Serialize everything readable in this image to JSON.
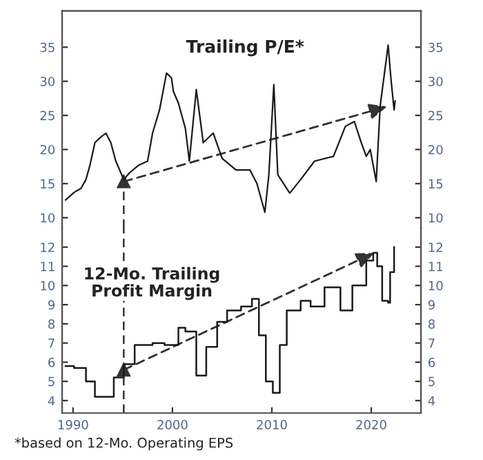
{
  "chart_data": [
    {
      "type": "line",
      "title": "Trailing P/E*",
      "xlim": [
        1988.9,
        2025
      ],
      "xticks": [
        1990,
        2000,
        2010,
        2020
      ],
      "ylim": [
        8.5,
        40.3
      ],
      "yticks": [
        10,
        15,
        20,
        25,
        30,
        35
      ],
      "y2lim": [
        8.5,
        40.3
      ],
      "y2ticks": [
        10,
        15,
        20,
        25,
        30,
        35
      ],
      "tick_labels": "y",
      "grid": false,
      "series": [
        {
          "color": "#1a1a1a",
          "x": [
            1989.25,
            1990.1,
            1990.8,
            1991.3,
            1991.7,
            1992.2,
            1992.7,
            1993.3,
            1993.8,
            1994.3,
            1995.1,
            1995.7,
            1996.6,
            1997.5,
            1998.0,
            1998.7,
            1999.4,
            1999.9,
            2000.1,
            2000.6,
            2001.3,
            2001.7,
            2002.4,
            2003.1,
            2004.1,
            2005.0,
            2006.4,
            2007.8,
            2008.5,
            2009.3,
            2009.7,
            2010.2,
            2010.6,
            2011.8,
            2012.9,
            2014.3,
            2016.2,
            2017.4,
            2018.3,
            2019.0,
            2019.5,
            2019.9,
            2020.5,
            2020.9,
            2021.7,
            2022.0,
            2022.3,
            2022.4
          ],
          "values": [
            12.6,
            13.7,
            14.3,
            15.6,
            17.7,
            21.0,
            21.7,
            22.4,
            21.0,
            18.3,
            15.6,
            16.6,
            17.7,
            18.3,
            22.4,
            25.8,
            31.2,
            30.5,
            28.5,
            26.8,
            23.1,
            18.3,
            28.8,
            21.0,
            22.4,
            18.7,
            17.0,
            17.0,
            15.0,
            10.8,
            16.3,
            29.5,
            16.3,
            13.6,
            15.6,
            18.3,
            19.0,
            23.4,
            24.1,
            21.0,
            19.0,
            20.0,
            15.3,
            26.4,
            35.3,
            30.1,
            25.8,
            27.1
          ]
        },
        {
          "type": "line",
          "color": "#333333",
          "line_style": "dashed",
          "marker": "triangle",
          "x": [
            1995.1,
            2021.6
          ],
          "values": [
            15.3,
            26.3
          ]
        }
      ],
      "ref_lines": [
        {
          "axis": "x",
          "value": 1995.1,
          "line_style": "dashed",
          "color": "#333333"
        }
      ]
    },
    {
      "type": "line",
      "title": "12-Mo. Trailing\nProfit Margin",
      "xlim": [
        1988.9,
        2025
      ],
      "xticks": [
        1990,
        2000,
        2010,
        2020
      ],
      "ylim": [
        3.35,
        13.0
      ],
      "yticks": [
        4,
        5,
        6,
        7,
        8,
        9,
        10,
        11,
        12
      ],
      "y2lim": [
        3.35,
        13.0
      ],
      "y2ticks": [
        4,
        5,
        6,
        7,
        8,
        9,
        10,
        11,
        12
      ],
      "grid": false,
      "annotations": [
        "*based on 12-Mo. Operating EPS"
      ],
      "series": [
        {
          "type": "step",
          "color": "#1a1a1a",
          "x": [
            1989.25,
            1990.1,
            1991.3,
            1992.2,
            1993.4,
            1994.1,
            1995.1,
            1996.2,
            1998.0,
            1999.2,
            2000.6,
            2001.3,
            2002.4,
            2003.4,
            2004.5,
            2005.5,
            2006.9,
            2008.0,
            2008.7,
            2009.4,
            2010.1,
            2010.8,
            2011.5,
            2012.9,
            2013.9,
            2015.3,
            2016.9,
            2018.1,
            2019.5,
            2020.2,
            2020.6,
            2021.1,
            2021.7,
            2021.9,
            2022.3
          ],
          "values": [
            5.8,
            5.7,
            5.0,
            4.2,
            4.2,
            5.2,
            5.9,
            6.9,
            7.0,
            6.9,
            7.8,
            7.6,
            5.3,
            6.8,
            8.1,
            8.7,
            8.9,
            9.3,
            7.4,
            5.0,
            4.4,
            6.9,
            8.7,
            9.2,
            8.9,
            9.9,
            8.7,
            10.0,
            11.3,
            11.7,
            11.0,
            9.2,
            9.1,
            10.7,
            12.0
          ]
        },
        {
          "type": "line",
          "color": "#333333",
          "line_style": "dashed",
          "marker": "triangle",
          "x": [
            1995.1,
            2020.3
          ],
          "values": [
            5.6,
            11.7
          ]
        }
      ],
      "ref_lines": [
        {
          "axis": "x",
          "value": 1995.1,
          "line_style": "dashed",
          "color": "#333333"
        }
      ]
    }
  ]
}
